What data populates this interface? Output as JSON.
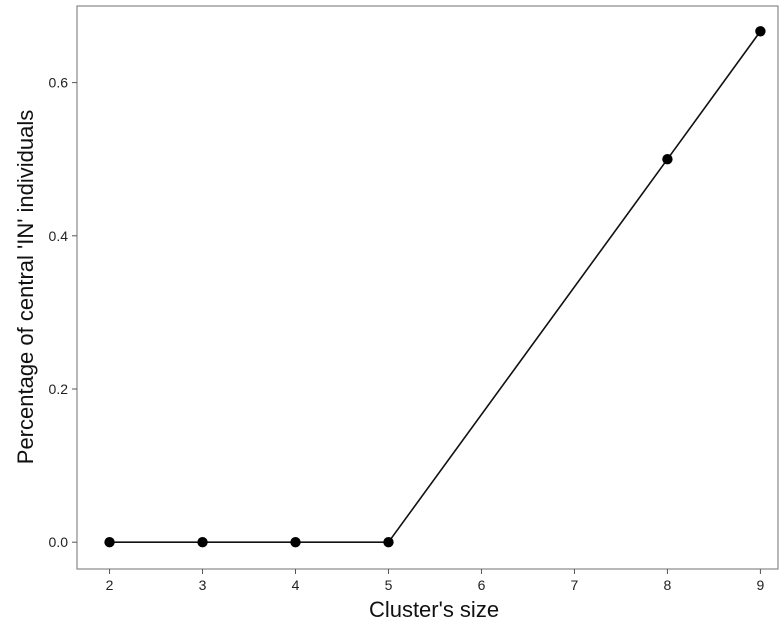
{
  "chart_data": {
    "type": "line",
    "title": "",
    "xlabel": "Cluster's size",
    "ylabel": "Percentage of central 'IN' individuals",
    "x": [
      2,
      3,
      4,
      5,
      8,
      9
    ],
    "series": [
      {
        "values": [
          0.0,
          0.0,
          0.0,
          0.0,
          0.5,
          0.667
        ]
      }
    ],
    "xlim": [
      1.65,
      9.2
    ],
    "ylim": [
      -0.035,
      0.7
    ],
    "xticks": [
      2,
      3,
      4,
      5,
      6,
      7,
      8,
      9
    ],
    "xtick_labels": [
      "2",
      "3",
      "4",
      "5",
      "6",
      "7",
      "8",
      "9"
    ],
    "yticks": [
      0.0,
      0.2,
      0.4,
      0.6
    ],
    "ytick_labels": [
      "0.0",
      "0.2",
      "0.4",
      "0.6"
    ],
    "grid": false,
    "colors": {
      "line": "#111111",
      "points": "#000000",
      "frame": "#888888"
    }
  }
}
